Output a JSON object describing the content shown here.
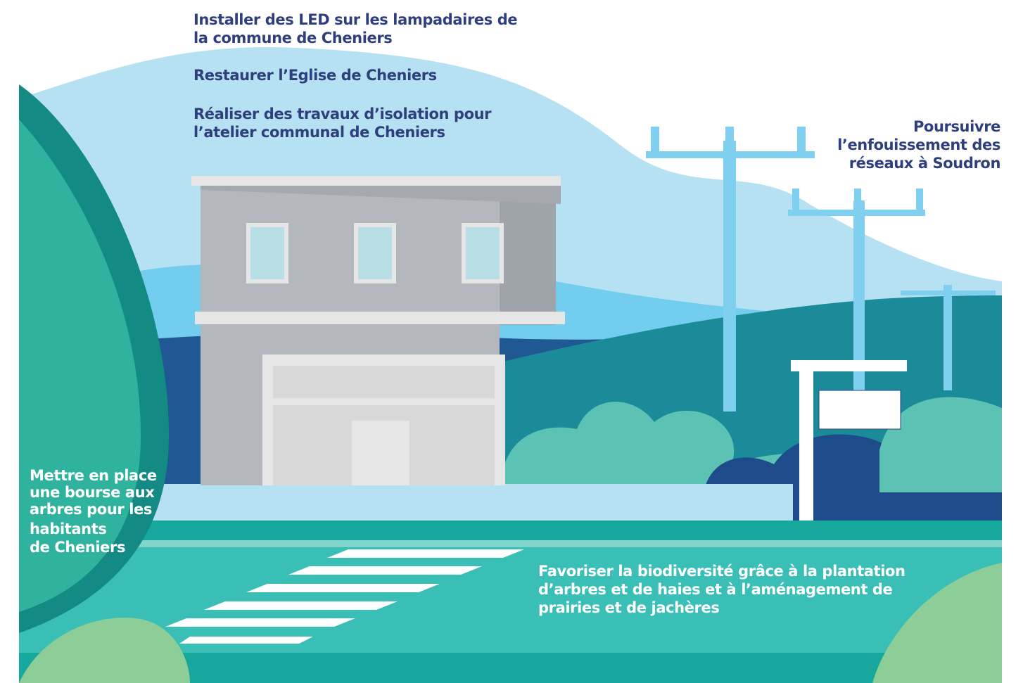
{
  "labels": [
    {
      "lines": [
        "Installer des LED sur les lampadaires de",
        "la commune de Cheniers"
      ]
    },
    {
      "lines": [
        "Restaurer l’Eglise de Cheniers"
      ]
    },
    {
      "lines": [
        "Réaliser des travaux d’isolation pour",
        "l’atelier communal de Cheniers"
      ]
    },
    {
      "lines": [
        "Poursuivre",
        "l’enfouissement des",
        "réseaux à Soudron"
      ]
    },
    {
      "lines": [
        "Mettre en place",
        "une bourse aux",
        "arbres pour les",
        "habitants",
        "de Cheniers"
      ]
    },
    {
      "lines": [
        "Favoriser la biodiversité grâce à la plantation",
        "d’arbres et de haies et à l’aménagement de",
        "prairies et de jachères"
      ]
    }
  ]
}
